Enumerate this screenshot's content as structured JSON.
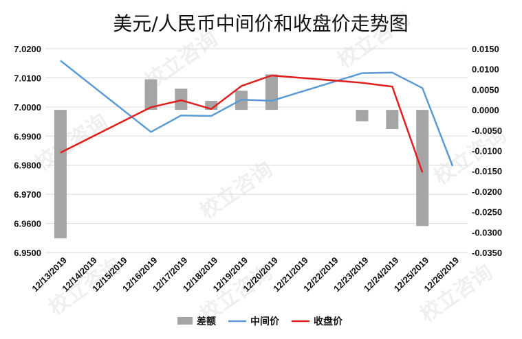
{
  "chart_data": {
    "type": "bar+line",
    "title": "美元/人民币中间价和收盘价走势图",
    "watermark": "校立咨询",
    "categories": [
      "12/13/2019",
      "12/14/2019",
      "12/15/2019",
      "12/16/2019",
      "12/17/2019",
      "12/18/2019",
      "12/19/2019",
      "12/20/2019",
      "12/21/2019",
      "12/22/2019",
      "12/23/2019",
      "12/24/2019",
      "12/25/2019",
      "12/26/2019"
    ],
    "left_axis": {
      "min": 6.95,
      "max": 7.02,
      "ticks": [
        "6.9500",
        "6.9600",
        "6.9700",
        "6.9800",
        "6.9900",
        "7.0000",
        "7.0100",
        "7.0200"
      ]
    },
    "right_axis": {
      "min": -0.035,
      "max": 0.015,
      "ticks": [
        "-0.0350",
        "-0.0300",
        "-0.0250",
        "-0.0200",
        "-0.0150",
        "-0.0100",
        "-0.0050",
        "0.0000",
        "0.0050",
        "0.0100",
        "0.0150"
      ]
    },
    "series": [
      {
        "name": "差额",
        "kind": "bar",
        "axis": "right",
        "color": "#a5a5a5",
        "values": [
          -0.0315,
          null,
          null,
          0.0075,
          0.0052,
          0.0022,
          0.0047,
          0.0087,
          null,
          null,
          -0.0028,
          -0.0047,
          -0.0285,
          null
        ]
      },
      {
        "name": "中间价",
        "kind": "line",
        "axis": "left",
        "color": "#5b9bd5",
        "values": [
          7.0159,
          null,
          null,
          6.9914,
          6.9971,
          6.9969,
          7.0025,
          7.0021,
          null,
          null,
          7.0116,
          7.0118,
          7.0065,
          6.9797
        ]
      },
      {
        "name": "收盘价",
        "kind": "line",
        "axis": "left",
        "color": "#e02020",
        "values": [
          6.9843,
          null,
          null,
          6.9999,
          7.0023,
          6.9993,
          7.0072,
          7.0108,
          null,
          null,
          7.0083,
          7.007,
          6.9775,
          null
        ]
      }
    ],
    "legend": {
      "position": "bottom"
    },
    "grid": true
  }
}
